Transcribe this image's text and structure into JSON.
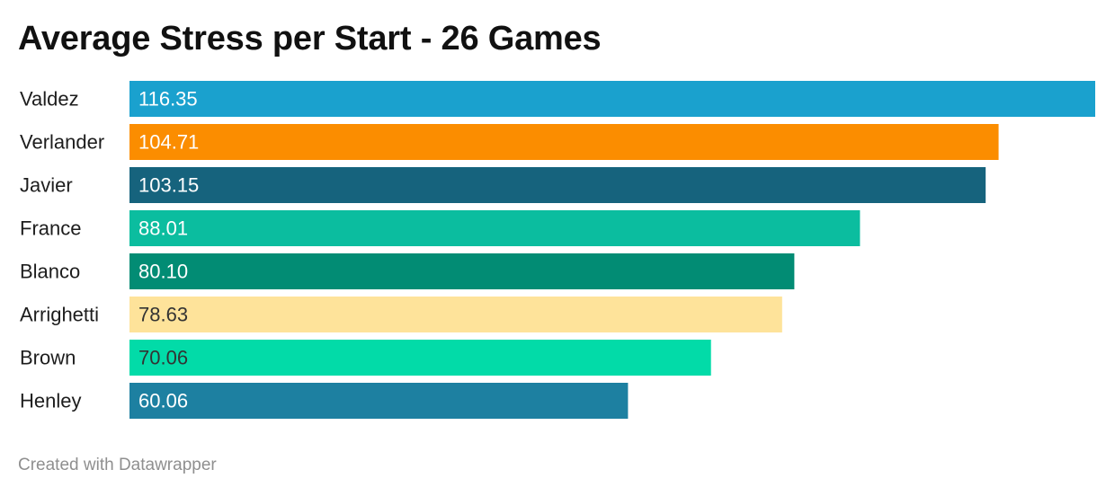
{
  "chart_data": {
    "type": "bar",
    "orientation": "horizontal",
    "title": "Average Stress per Start - 26 Games",
    "xlabel": "",
    "ylabel": "",
    "categories": [
      "Valdez",
      "Verlander",
      "Javier",
      "France",
      "Blanco",
      "Arrighetti",
      "Brown",
      "Henley"
    ],
    "values": [
      116.35,
      104.71,
      103.15,
      88.01,
      80.1,
      78.63,
      70.06,
      60.06
    ],
    "value_labels": [
      "116.35",
      "104.71",
      "103.15",
      "88.01",
      "80.10",
      "78.63",
      "70.06",
      "60.06"
    ],
    "colors": [
      "#1aa1ce",
      "#fb8d00",
      "#16637d",
      "#0bbd9f",
      "#028c74",
      "#fee39a",
      "#02dba8",
      "#1d80a1"
    ],
    "label_colors": [
      "#ffffff",
      "#ffffff",
      "#ffffff",
      "#ffffff",
      "#ffffff",
      "#333333",
      "#333333",
      "#ffffff"
    ],
    "xlim": [
      0,
      116.35
    ],
    "grid": false,
    "legend": "none"
  },
  "footer": {
    "credit": "Created with Datawrapper"
  }
}
